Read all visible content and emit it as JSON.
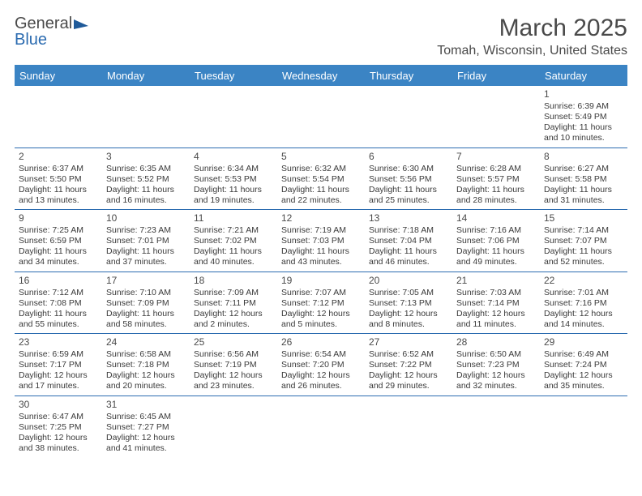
{
  "header": {
    "logo_general": "General",
    "logo_blue": "Blue",
    "month_title": "March 2025",
    "location": "Tomah, Wisconsin, United States"
  },
  "colors": {
    "header_bg": "#3b84c4",
    "header_text": "#ffffff",
    "row_border": "#2b6bb0",
    "body_text": "#3a3a3a",
    "title_text": "#4a4a4a",
    "logo_blue": "#2b6bb0",
    "logo_shape": "#1f5a99"
  },
  "days_of_week": [
    "Sunday",
    "Monday",
    "Tuesday",
    "Wednesday",
    "Thursday",
    "Friday",
    "Saturday"
  ],
  "weeks": [
    [
      null,
      null,
      null,
      null,
      null,
      null,
      {
        "n": "1",
        "sr": "Sunrise: 6:39 AM",
        "ss": "Sunset: 5:49 PM",
        "dl": "Daylight: 11 hours and 10 minutes."
      }
    ],
    [
      {
        "n": "2",
        "sr": "Sunrise: 6:37 AM",
        "ss": "Sunset: 5:50 PM",
        "dl": "Daylight: 11 hours and 13 minutes."
      },
      {
        "n": "3",
        "sr": "Sunrise: 6:35 AM",
        "ss": "Sunset: 5:52 PM",
        "dl": "Daylight: 11 hours and 16 minutes."
      },
      {
        "n": "4",
        "sr": "Sunrise: 6:34 AM",
        "ss": "Sunset: 5:53 PM",
        "dl": "Daylight: 11 hours and 19 minutes."
      },
      {
        "n": "5",
        "sr": "Sunrise: 6:32 AM",
        "ss": "Sunset: 5:54 PM",
        "dl": "Daylight: 11 hours and 22 minutes."
      },
      {
        "n": "6",
        "sr": "Sunrise: 6:30 AM",
        "ss": "Sunset: 5:56 PM",
        "dl": "Daylight: 11 hours and 25 minutes."
      },
      {
        "n": "7",
        "sr": "Sunrise: 6:28 AM",
        "ss": "Sunset: 5:57 PM",
        "dl": "Daylight: 11 hours and 28 minutes."
      },
      {
        "n": "8",
        "sr": "Sunrise: 6:27 AM",
        "ss": "Sunset: 5:58 PM",
        "dl": "Daylight: 11 hours and 31 minutes."
      }
    ],
    [
      {
        "n": "9",
        "sr": "Sunrise: 7:25 AM",
        "ss": "Sunset: 6:59 PM",
        "dl": "Daylight: 11 hours and 34 minutes."
      },
      {
        "n": "10",
        "sr": "Sunrise: 7:23 AM",
        "ss": "Sunset: 7:01 PM",
        "dl": "Daylight: 11 hours and 37 minutes."
      },
      {
        "n": "11",
        "sr": "Sunrise: 7:21 AM",
        "ss": "Sunset: 7:02 PM",
        "dl": "Daylight: 11 hours and 40 minutes."
      },
      {
        "n": "12",
        "sr": "Sunrise: 7:19 AM",
        "ss": "Sunset: 7:03 PM",
        "dl": "Daylight: 11 hours and 43 minutes."
      },
      {
        "n": "13",
        "sr": "Sunrise: 7:18 AM",
        "ss": "Sunset: 7:04 PM",
        "dl": "Daylight: 11 hours and 46 minutes."
      },
      {
        "n": "14",
        "sr": "Sunrise: 7:16 AM",
        "ss": "Sunset: 7:06 PM",
        "dl": "Daylight: 11 hours and 49 minutes."
      },
      {
        "n": "15",
        "sr": "Sunrise: 7:14 AM",
        "ss": "Sunset: 7:07 PM",
        "dl": "Daylight: 11 hours and 52 minutes."
      }
    ],
    [
      {
        "n": "16",
        "sr": "Sunrise: 7:12 AM",
        "ss": "Sunset: 7:08 PM",
        "dl": "Daylight: 11 hours and 55 minutes."
      },
      {
        "n": "17",
        "sr": "Sunrise: 7:10 AM",
        "ss": "Sunset: 7:09 PM",
        "dl": "Daylight: 11 hours and 58 minutes."
      },
      {
        "n": "18",
        "sr": "Sunrise: 7:09 AM",
        "ss": "Sunset: 7:11 PM",
        "dl": "Daylight: 12 hours and 2 minutes."
      },
      {
        "n": "19",
        "sr": "Sunrise: 7:07 AM",
        "ss": "Sunset: 7:12 PM",
        "dl": "Daylight: 12 hours and 5 minutes."
      },
      {
        "n": "20",
        "sr": "Sunrise: 7:05 AM",
        "ss": "Sunset: 7:13 PM",
        "dl": "Daylight: 12 hours and 8 minutes."
      },
      {
        "n": "21",
        "sr": "Sunrise: 7:03 AM",
        "ss": "Sunset: 7:14 PM",
        "dl": "Daylight: 12 hours and 11 minutes."
      },
      {
        "n": "22",
        "sr": "Sunrise: 7:01 AM",
        "ss": "Sunset: 7:16 PM",
        "dl": "Daylight: 12 hours and 14 minutes."
      }
    ],
    [
      {
        "n": "23",
        "sr": "Sunrise: 6:59 AM",
        "ss": "Sunset: 7:17 PM",
        "dl": "Daylight: 12 hours and 17 minutes."
      },
      {
        "n": "24",
        "sr": "Sunrise: 6:58 AM",
        "ss": "Sunset: 7:18 PM",
        "dl": "Daylight: 12 hours and 20 minutes."
      },
      {
        "n": "25",
        "sr": "Sunrise: 6:56 AM",
        "ss": "Sunset: 7:19 PM",
        "dl": "Daylight: 12 hours and 23 minutes."
      },
      {
        "n": "26",
        "sr": "Sunrise: 6:54 AM",
        "ss": "Sunset: 7:20 PM",
        "dl": "Daylight: 12 hours and 26 minutes."
      },
      {
        "n": "27",
        "sr": "Sunrise: 6:52 AM",
        "ss": "Sunset: 7:22 PM",
        "dl": "Daylight: 12 hours and 29 minutes."
      },
      {
        "n": "28",
        "sr": "Sunrise: 6:50 AM",
        "ss": "Sunset: 7:23 PM",
        "dl": "Daylight: 12 hours and 32 minutes."
      },
      {
        "n": "29",
        "sr": "Sunrise: 6:49 AM",
        "ss": "Sunset: 7:24 PM",
        "dl": "Daylight: 12 hours and 35 minutes."
      }
    ],
    [
      {
        "n": "30",
        "sr": "Sunrise: 6:47 AM",
        "ss": "Sunset: 7:25 PM",
        "dl": "Daylight: 12 hours and 38 minutes."
      },
      {
        "n": "31",
        "sr": "Sunrise: 6:45 AM",
        "ss": "Sunset: 7:27 PM",
        "dl": "Daylight: 12 hours and 41 minutes."
      },
      null,
      null,
      null,
      null,
      null
    ]
  ]
}
